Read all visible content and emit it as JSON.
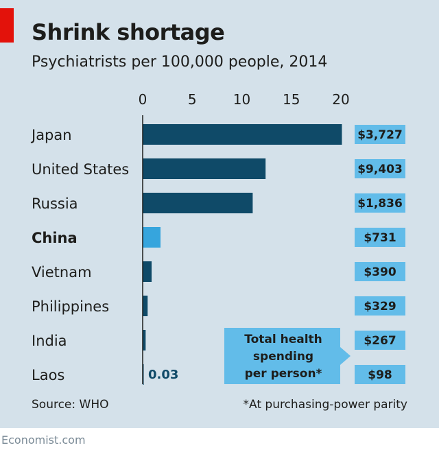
{
  "title": "Shrink shortage",
  "subtitle": "Psychiatrists per 100,000 people, 2014",
  "source": "Source: WHO",
  "footnote": "*At purchasing-power parity",
  "brand": "Economist.com",
  "colors": {
    "bar": "#0f4a68",
    "highlight": "#36a5dd",
    "spend_box": "#62bce9",
    "background": "#d4e1ea",
    "red_tab": "#e3120b"
  },
  "chart_data": {
    "type": "bar",
    "orientation": "horizontal",
    "title": "Shrink shortage",
    "subtitle": "Psychiatrists per 100,000 people, 2014",
    "xlim": [
      0,
      20
    ],
    "xticks": [
      0,
      5,
      10,
      15,
      20
    ],
    "categories": [
      "Japan",
      "United States",
      "Russia",
      "China",
      "Vietnam",
      "Philippines",
      "India",
      "Laos"
    ],
    "values": [
      20.1,
      12.4,
      11.1,
      1.8,
      0.9,
      0.5,
      0.3,
      0.03
    ],
    "highlight": "China",
    "annotations": [
      {
        "category": "Laos",
        "label": "0.03"
      }
    ],
    "secondary_series": {
      "name": "Total health spending per person*",
      "name_lines": [
        "Total health",
        "spending",
        "per person*"
      ],
      "labels": [
        "$3,727",
        "$9,403",
        "$1,836",
        "$731",
        "$390",
        "$329",
        "$267",
        "$98"
      ]
    }
  }
}
